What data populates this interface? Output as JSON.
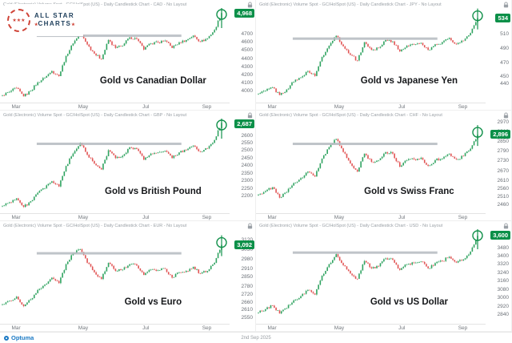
{
  "logo": {
    "line1": "ALL STAR",
    "line2": "CHARTS"
  },
  "footer": {
    "brand": "Optuma",
    "date": "2nd Sep 2025"
  },
  "chart_data": [
    {
      "type": "candlestick",
      "header": "Gold (Electronic) Volume Spot - GC/HolSpot (US) - Daily Candlestick Chart - CAD - No Layout",
      "title": "Gold vs Canadian Dollar",
      "badge": "4,968",
      "currency": "CAD",
      "xticks": [
        "Mar",
        "May",
        "Jul",
        "Sep"
      ],
      "yticks": [
        4700,
        4600,
        4500,
        4400,
        4300,
        4200,
        4100,
        4000
      ],
      "ymin": 3920,
      "ymax": 5000,
      "resistance": 4690,
      "resistance_x": [
        0.16,
        0.79
      ],
      "closes": [
        3961,
        4002,
        4050,
        3947,
        4016,
        4119,
        4175,
        4257,
        4195,
        4444,
        4595,
        4727,
        4582,
        4471,
        4402,
        4637,
        4540,
        4568,
        4671,
        4651,
        4520,
        4595,
        4609,
        4630,
        4540,
        4609,
        4637,
        4692,
        4616,
        4658,
        4761,
        4968
      ]
    },
    {
      "type": "candlestick",
      "header": "Gold (Electronic) Volume Spot - GC/HolSpot (US) - Daily Candlestick Chart - JPY - No Layout",
      "title": "Gold vs Japanese Yen",
      "badge": "534",
      "currency": "JPY",
      "xticks": [
        "Mar",
        "May",
        "Jul",
        "Sep"
      ],
      "yticks": [
        510,
        490,
        470,
        450,
        440
      ],
      "ymin": 420,
      "ymax": 545,
      "resistance": 505,
      "resistance_x": [
        0.16,
        0.79
      ],
      "closes": [
        427,
        431,
        436,
        425,
        433,
        444,
        450,
        459,
        452,
        479,
        495,
        509,
        494,
        482,
        474,
        500,
        489,
        492,
        503,
        501,
        487,
        495,
        497,
        499,
        489,
        497,
        500,
        506,
        497,
        502,
        513,
        534
      ]
    },
    {
      "type": "candlestick",
      "header": "Gold (Electronic) Volume Spot - GC/HolSpot (US) - Daily Candlestick Chart - GBP - No Layout",
      "title": "Gold vs British Pound",
      "badge": "2,687",
      "currency": "GBP",
      "xticks": [
        "Mar",
        "May",
        "Jul",
        "Sep"
      ],
      "yticks": [
        2600,
        2550,
        2500,
        2450,
        2400,
        2350,
        2300,
        2250,
        2200
      ],
      "ymin": 2120,
      "ymax": 2700,
      "resistance": 2550,
      "resistance_x": [
        0.16,
        0.79
      ],
      "closes": [
        2142,
        2165,
        2191,
        2135,
        2172,
        2228,
        2258,
        2303,
        2269,
        2404,
        2486,
        2557,
        2478,
        2419,
        2381,
        2508,
        2456,
        2471,
        2527,
        2516,
        2445,
        2486,
        2493,
        2504,
        2456,
        2493,
        2508,
        2538,
        2497,
        2519,
        2575,
        2687
      ]
    },
    {
      "type": "candlestick",
      "header": "Gold (Electronic) Volume Spot - GC/HolSpot (US) - Daily Candlestick Chart - CHF - No Layout",
      "title": "Gold vs Swiss Franc",
      "badge": "2,896",
      "currency": "CHF",
      "xticks": [
        "Mar",
        "May",
        "Jul",
        "Sep"
      ],
      "yticks": [
        2970,
        2910,
        2850,
        2790,
        2730,
        2670,
        2610,
        2560,
        2510,
        2460
      ],
      "ymin": 2440,
      "ymax": 2980,
      "resistance": 2840,
      "resistance_x": [
        0.16,
        0.79
      ],
      "closes": [
        2530,
        2550,
        2575,
        2510,
        2545,
        2600,
        2630,
        2670,
        2640,
        2750,
        2820,
        2870,
        2790,
        2720,
        2670,
        2780,
        2730,
        2740,
        2790,
        2780,
        2700,
        2740,
        2745,
        2755,
        2705,
        2740,
        2750,
        2780,
        2745,
        2765,
        2810,
        2896
      ]
    },
    {
      "type": "candlestick",
      "header": "Gold (Electronic) Volume Spot - GC/HolSpot (US) - Daily Candlestick Chart - EUR - No Layout",
      "title": "Gold vs Euro",
      "badge": "3,092",
      "currency": "EUR",
      "xticks": [
        "Mar",
        "May",
        "Jul",
        "Sep"
      ],
      "yticks": [
        3120,
        3050,
        2980,
        2910,
        2850,
        2780,
        2720,
        2660,
        2610,
        2550
      ],
      "ymin": 2540,
      "ymax": 3190,
      "resistance": 3030,
      "resistance_x": [
        0.16,
        0.79
      ],
      "closes": [
        2655,
        2680,
        2710,
        2640,
        2690,
        2760,
        2800,
        2850,
        2810,
        2950,
        3030,
        3060,
        2960,
        2890,
        2840,
        2960,
        2900,
        2910,
        2950,
        2940,
        2870,
        2910,
        2905,
        2915,
        2850,
        2890,
        2900,
        2930,
        2880,
        2900,
        2960,
        3092
      ]
    },
    {
      "type": "candlestick",
      "header": "Gold (Electronic) Volume Spot - GC/HolSpot (US) - Daily Candlestick Chart - USD - No Layout",
      "title": "Gold vs US Dollar",
      "badge": "3,600",
      "currency": "USD",
      "xticks": [
        "Mar",
        "May",
        "Jul",
        "Sep"
      ],
      "yticks": [
        3480,
        3400,
        3320,
        3240,
        3160,
        3080,
        3000,
        2920,
        2840
      ],
      "ymin": 2800,
      "ymax": 3640,
      "resistance": 3440,
      "resistance_x": [
        0.16,
        0.79
      ],
      "closes": [
        2870,
        2900,
        2935,
        2860,
        2910,
        2985,
        3025,
        3085,
        3040,
        3220,
        3330,
        3425,
        3320,
        3240,
        3190,
        3360,
        3290,
        3310,
        3385,
        3370,
        3275,
        3330,
        3340,
        3355,
        3290,
        3340,
        3360,
        3400,
        3345,
        3375,
        3450,
        3600
      ]
    }
  ]
}
